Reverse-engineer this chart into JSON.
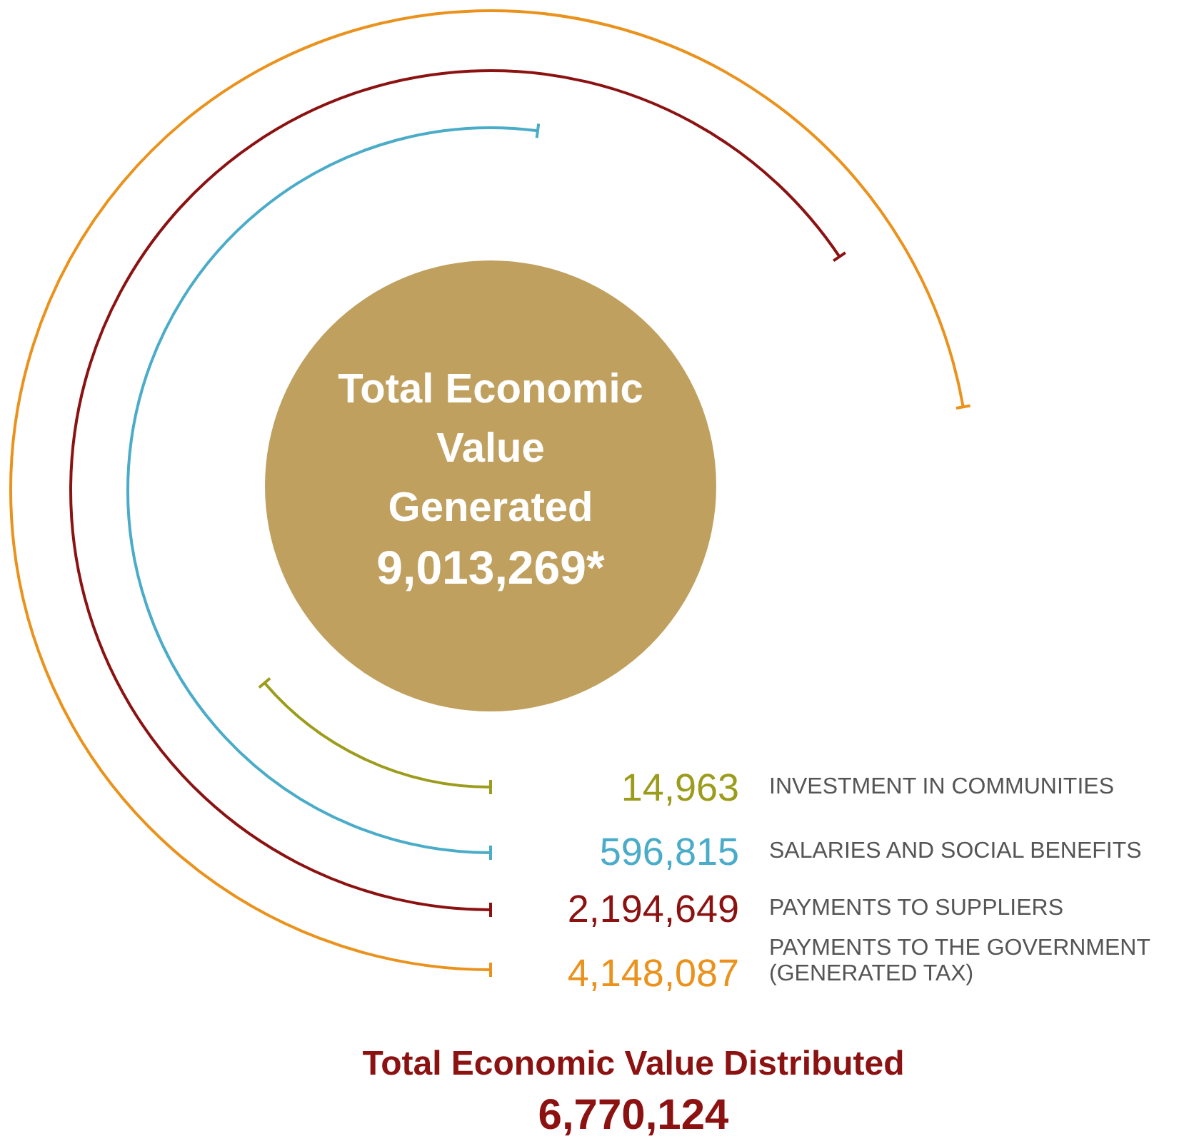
{
  "chart_data": {
    "type": "other",
    "title": "Total Economic Value Distributed",
    "subtitle": "6,770,124",
    "annotations": [
      "Total Economic\nValue\nGenerated",
      "9,013,269*"
    ],
    "categories": [
      "INVESTMENT IN COMMUNITIES",
      "SALARIES AND SOCIAL BENEFITS",
      "PAYMENTS TO SUPPLIERS",
      "PAYMENTS TO THE GOVERNMENT\n(GENERATED TAX)"
    ],
    "values": [
      14963,
      596815,
      2194649,
      4148087
    ],
    "colors": [
      "#9c9c1c",
      "#4aacc8",
      "#8c1212",
      "#ea921c"
    ],
    "value_labels": [
      "14,963",
      "596,815",
      "2,194,649",
      "4,148,087"
    ]
  }
}
